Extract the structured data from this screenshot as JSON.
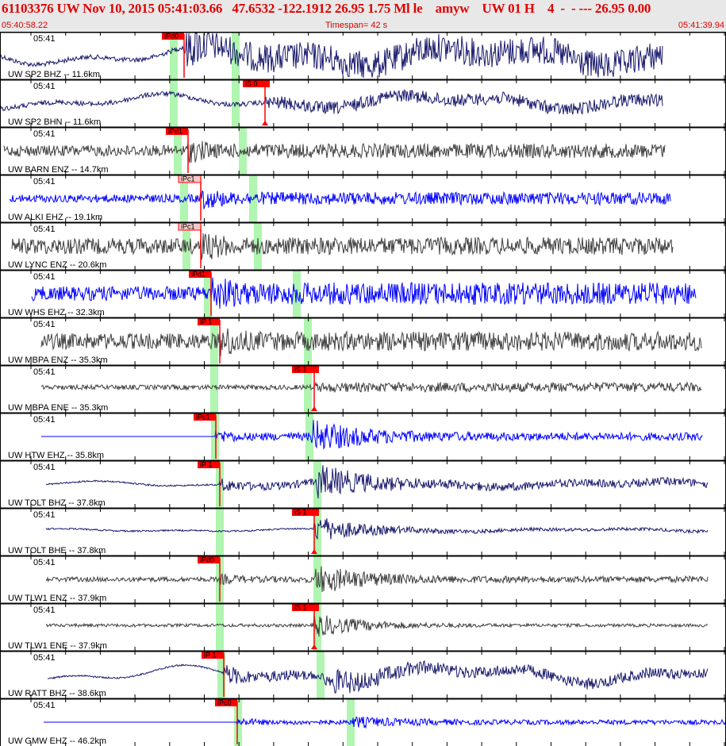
{
  "header": {
    "title": "61103376 UW Nov 10, 2015 05:41:03.66   47.6532 -122.1912 26.95 1.75 Ml le    amyw    UW 01 H    4  -  - --- 26.95 0.00",
    "start_time": "05:40:58.22",
    "timespan": "Timespan=  42 s",
    "end_time": "05:41:39.94"
  },
  "minute_label": "05:41",
  "colors": {
    "header_text": "#e00000",
    "pick": "#ff0000",
    "pick_weak": "#f8c8c8",
    "window": "#b0f5b0",
    "navy": "#1a1a6e",
    "gray": "#404040",
    "blue": "#0000ff"
  },
  "channels": [
    {
      "label": "UW SP2 BHZ -- 11.6km",
      "trace": "navy",
      "pick": "iPd0",
      "pick_style": "strong"
    },
    {
      "label": "UW SP2 BHN -- 11.6km",
      "trace": "navy",
      "pick": "iS 0",
      "pick_style": "strong"
    },
    {
      "label": "UW BARN ENZ -- 14.7km",
      "trace": "gray",
      "pick": "iPd1",
      "pick_style": "strong"
    },
    {
      "label": "UW ALKI EHZ -- 19.1km",
      "trace": "blue",
      "pick": "iPc1",
      "pick_style": "weak"
    },
    {
      "label": "UW LYNC ENZ -- 20.6km",
      "trace": "gray",
      "pick": "iPc1",
      "pick_style": "weak"
    },
    {
      "label": "UW WHS EHZ -- 32.3km",
      "trace": "blue",
      "pick": "iPd1",
      "pick_style": "strong"
    },
    {
      "label": "UW MBPA ENZ -- 35.3km",
      "trace": "gray",
      "pick": "iP 1",
      "pick_style": "strong"
    },
    {
      "label": "UW MBPA ENE -- 35.3km",
      "trace": "gray",
      "pick": "iS 1",
      "pick_style": "strong"
    },
    {
      "label": "UW HTW EHZ -- 35.8km",
      "trace": "blue",
      "pick": "iPc1",
      "pick_style": "strong"
    },
    {
      "label": "UW TOLT BHZ -- 37.8km",
      "trace": "navy",
      "pick": "iP 1",
      "pick_style": "strong"
    },
    {
      "label": "UW TOLT BHE -- 37.8km",
      "trace": "navy",
      "pick": "iS 1",
      "pick_style": "strong"
    },
    {
      "label": "UW TLW1 ENZ -- 37.9km",
      "trace": "gray",
      "pick": "iPd0",
      "pick_style": "strong"
    },
    {
      "label": "UW TLW1 ENE -- 37.9km",
      "trace": "gray",
      "pick": "iS 1",
      "pick_style": "strong"
    },
    {
      "label": "UW RATT BHZ -- 38.6km",
      "trace": "navy",
      "pick": "iP 1",
      "pick_style": "strong"
    },
    {
      "label": "UW GMW EHZ -- 46.2km",
      "trace": "blue",
      "pick": "iPc0",
      "pick_style": "strong"
    }
  ]
}
